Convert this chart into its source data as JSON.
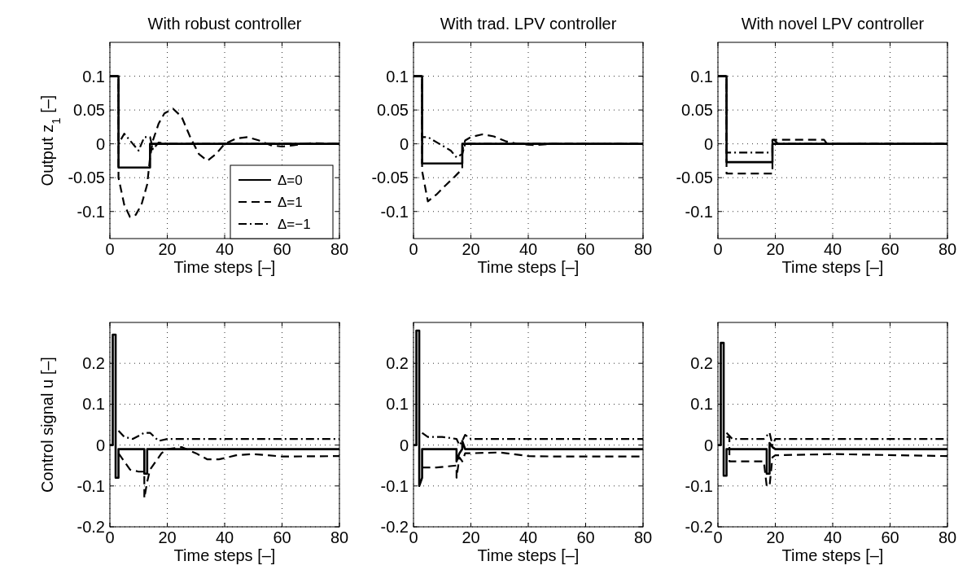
{
  "chart_data": [
    {
      "type": "line",
      "title": "With robust controller",
      "xlabel": "Time steps [–]",
      "ylabel": "Output z$_{1}$ [–]",
      "xlim": [
        0,
        80
      ],
      "xticks": [
        0,
        20,
        40,
        60,
        80
      ],
      "ylim": [
        -0.14,
        0.15
      ],
      "yticks": [
        {
          "value": -0.1,
          "label": "-0.1"
        },
        {
          "value": -0.05,
          "label": "-0.05"
        },
        0,
        0.05,
        0.1
      ],
      "grid": true,
      "legend": "bottom right",
      "series": [
        {
          "name": "Δ=0",
          "color": "#000000",
          "line_style": "solid",
          "x": [
            0,
            3,
            3,
            14,
            14,
            80
          ],
          "values": [
            0.1,
            0.1,
            -0.035,
            -0.035,
            0,
            0
          ]
        },
        {
          "name": "Δ=1",
          "color": "#000000",
          "line_style": "dashed",
          "x": [
            0,
            3,
            3,
            5,
            7,
            9,
            11,
            13,
            14,
            15,
            17,
            19,
            22,
            25,
            28,
            31,
            34,
            37,
            40,
            44,
            48,
            52,
            56,
            60,
            64,
            70,
            80
          ],
          "values": [
            0.1,
            0.1,
            -0.05,
            -0.09,
            -0.108,
            -0.105,
            -0.09,
            -0.06,
            -0.02,
            0.005,
            0.03,
            0.045,
            0.052,
            0.04,
            0.01,
            -0.015,
            -0.025,
            -0.015,
            0,
            0.008,
            0.01,
            0.005,
            -0.002,
            -0.004,
            -0.002,
            0.001,
            0
          ]
        },
        {
          "name": "Δ=−1",
          "color": "#000000",
          "line_style": "dashdot",
          "x": [
            0,
            3,
            3,
            5,
            7,
            10,
            12,
            14,
            15,
            17,
            20,
            80
          ],
          "values": [
            0.1,
            0.1,
            0,
            0.015,
            0.005,
            -0.01,
            0.01,
            0.01,
            -0.008,
            0.002,
            0,
            0
          ]
        }
      ]
    },
    {
      "type": "line",
      "title": "With trad. LPV controller",
      "xlabel": "Time steps [–]",
      "xlim": [
        0,
        80
      ],
      "xticks": [
        0,
        20,
        40,
        60,
        80
      ],
      "ylim": [
        -0.14,
        0.15
      ],
      "yticks": [
        {
          "value": -0.1,
          "label": "-0.1"
        },
        {
          "value": -0.05,
          "label": "-0.05"
        },
        0,
        0.05,
        0.1
      ],
      "grid": true,
      "series": [
        {
          "color": "#000000",
          "line_style": "solid",
          "x": [
            0,
            3,
            3,
            17,
            17,
            80
          ],
          "values": [
            0.1,
            0.1,
            -0.029,
            -0.029,
            0,
            0
          ]
        },
        {
          "color": "#000000",
          "line_style": "dashed",
          "x": [
            0,
            3,
            3,
            5,
            8,
            11,
            14,
            17,
            17,
            18,
            20,
            24,
            28,
            32,
            36,
            42,
            48,
            80
          ],
          "values": [
            0.1,
            0.1,
            -0.04,
            -0.085,
            -0.075,
            -0.062,
            -0.05,
            -0.037,
            -0.01,
            0.005,
            0.01,
            0.014,
            0.011,
            0.004,
            0,
            -0.002,
            0,
            0
          ]
        },
        {
          "color": "#000000",
          "line_style": "dashdot",
          "x": [
            0,
            3,
            3,
            5,
            9,
            13,
            15,
            17,
            18,
            80
          ],
          "values": [
            0.1,
            0.1,
            0.01,
            0.01,
            0,
            -0.01,
            -0.02,
            -0.015,
            0,
            0
          ]
        }
      ]
    },
    {
      "type": "line",
      "title": "With novel LPV controller",
      "xlabel": "Time steps [–]",
      "xlim": [
        0,
        80
      ],
      "xticks": [
        0,
        20,
        40,
        60,
        80
      ],
      "ylim": [
        -0.14,
        0.15
      ],
      "yticks": [
        {
          "value": -0.1,
          "label": "-0.1"
        },
        {
          "value": -0.05,
          "label": "-0.05"
        },
        0,
        0.05,
        0.1
      ],
      "grid": true,
      "series": [
        {
          "color": "#000000",
          "line_style": "solid",
          "x": [
            0,
            3,
            3,
            19,
            19,
            80
          ],
          "values": [
            0.1,
            0.1,
            -0.027,
            -0.027,
            0,
            0
          ]
        },
        {
          "color": "#000000",
          "line_style": "dashed",
          "x": [
            0,
            3,
            3,
            19,
            19,
            37,
            38,
            80
          ],
          "values": [
            0.1,
            0.1,
            -0.044,
            -0.044,
            0.006,
            0.006,
            0,
            0
          ]
        },
        {
          "color": "#000000",
          "line_style": "dashdot",
          "x": [
            0,
            3,
            3,
            19,
            19,
            21,
            80
          ],
          "values": [
            0.1,
            0.1,
            -0.013,
            -0.013,
            0.008,
            0,
            0
          ]
        }
      ]
    },
    {
      "type": "line",
      "xlabel": "Time steps [–]",
      "ylabel": "Control signal u [–]",
      "xlim": [
        0,
        80
      ],
      "xticks": [
        0,
        20,
        40,
        60,
        80
      ],
      "ylim": [
        -0.2,
        0.3
      ],
      "yticks": [
        {
          "value": -0.2,
          "label": "-0.2"
        },
        {
          "value": -0.1,
          "label": "-0.1"
        },
        0,
        0.1,
        0.2
      ],
      "grid": true,
      "series": [
        {
          "color": "#000000",
          "line_style": "solid",
          "x": [
            0,
            1,
            1,
            2,
            2,
            3,
            3,
            12,
            12,
            13,
            13,
            80
          ],
          "values": [
            0,
            0,
            0.27,
            0.27,
            -0.08,
            -0.08,
            -0.01,
            -0.01,
            -0.07,
            -0.07,
            -0.01,
            -0.01
          ]
        },
        {
          "color": "#000000",
          "line_style": "dashed",
          "x": [
            3,
            5,
            7,
            10,
            12,
            12,
            13,
            14,
            16,
            18,
            20,
            25,
            30,
            34,
            38,
            44,
            50,
            60,
            80
          ],
          "values": [
            -0.02,
            -0.04,
            -0.06,
            -0.065,
            -0.065,
            -0.13,
            -0.09,
            -0.06,
            -0.04,
            -0.02,
            -0.01,
            -0.005,
            -0.02,
            -0.035,
            -0.035,
            -0.025,
            -0.022,
            -0.028,
            -0.027
          ]
        },
        {
          "color": "#000000",
          "line_style": "dashdot",
          "x": [
            3,
            5,
            8,
            12,
            14,
            17,
            20,
            80
          ],
          "values": [
            0.035,
            0.02,
            0.015,
            0.03,
            0.03,
            0.01,
            0.015,
            0.015
          ]
        }
      ]
    },
    {
      "type": "line",
      "xlabel": "Time steps [–]",
      "xlim": [
        0,
        80
      ],
      "xticks": [
        0,
        20,
        40,
        60,
        80
      ],
      "ylim": [
        -0.2,
        0.3
      ],
      "yticks": [
        {
          "value": -0.2,
          "label": "-0.2"
        },
        {
          "value": -0.1,
          "label": "-0.1"
        },
        0,
        0.1,
        0.2
      ],
      "grid": true,
      "series": [
        {
          "color": "#000000",
          "line_style": "solid",
          "x": [
            0,
            1,
            1,
            2,
            2,
            3,
            3,
            15,
            15,
            16,
            17,
            17,
            18,
            80
          ],
          "values": [
            0,
            0,
            0.28,
            0.28,
            -0.1,
            -0.08,
            -0.01,
            -0.01,
            -0.04,
            -0.02,
            -0.01,
            0.01,
            -0.01,
            -0.01
          ]
        },
        {
          "color": "#000000",
          "line_style": "dashed",
          "x": [
            3,
            8,
            15,
            15,
            16,
            17,
            18,
            20,
            30,
            40,
            50,
            80
          ],
          "values": [
            -0.055,
            -0.055,
            -0.05,
            -0.08,
            -0.03,
            -0.04,
            -0.02,
            -0.02,
            -0.018,
            -0.027,
            -0.028,
            -0.028
          ]
        },
        {
          "color": "#000000",
          "line_style": "dashdot",
          "x": [
            3,
            5,
            10,
            15,
            16,
            17,
            18,
            20,
            80
          ],
          "values": [
            0.03,
            0.02,
            0.02,
            0.015,
            0,
            0.01,
            0.025,
            0.015,
            0.015
          ]
        }
      ]
    },
    {
      "type": "line",
      "xlabel": "Time steps [–]",
      "xlim": [
        0,
        80
      ],
      "xticks": [
        0,
        20,
        40,
        60,
        80
      ],
      "ylim": [
        -0.2,
        0.3
      ],
      "yticks": [
        {
          "value": -0.2,
          "label": "-0.2"
        },
        {
          "value": -0.1,
          "label": "-0.1"
        },
        0,
        0.1,
        0.2
      ],
      "grid": true,
      "series": [
        {
          "color": "#000000",
          "line_style": "solid",
          "x": [
            0,
            1,
            1,
            2,
            2,
            3,
            3,
            17,
            17,
            18,
            18,
            19,
            20,
            80
          ],
          "values": [
            0,
            0,
            0.25,
            0.25,
            -0.075,
            -0.075,
            -0.01,
            -0.01,
            -0.07,
            -0.07,
            0.005,
            -0.005,
            -0.01,
            -0.01
          ]
        },
        {
          "color": "#000000",
          "line_style": "dashed",
          "x": [
            3,
            4,
            4,
            16,
            17,
            18,
            19,
            20,
            40,
            80
          ],
          "values": [
            0.02,
            0.02,
            -0.04,
            -0.04,
            -0.1,
            -0.1,
            -0.03,
            -0.025,
            -0.022,
            -0.027
          ]
        },
        {
          "color": "#000000",
          "line_style": "dashdot",
          "x": [
            3,
            5,
            16,
            18,
            19,
            20,
            80
          ],
          "values": [
            0.03,
            0.015,
            0.015,
            0.03,
            0,
            0.015,
            0.015
          ]
        }
      ]
    }
  ]
}
